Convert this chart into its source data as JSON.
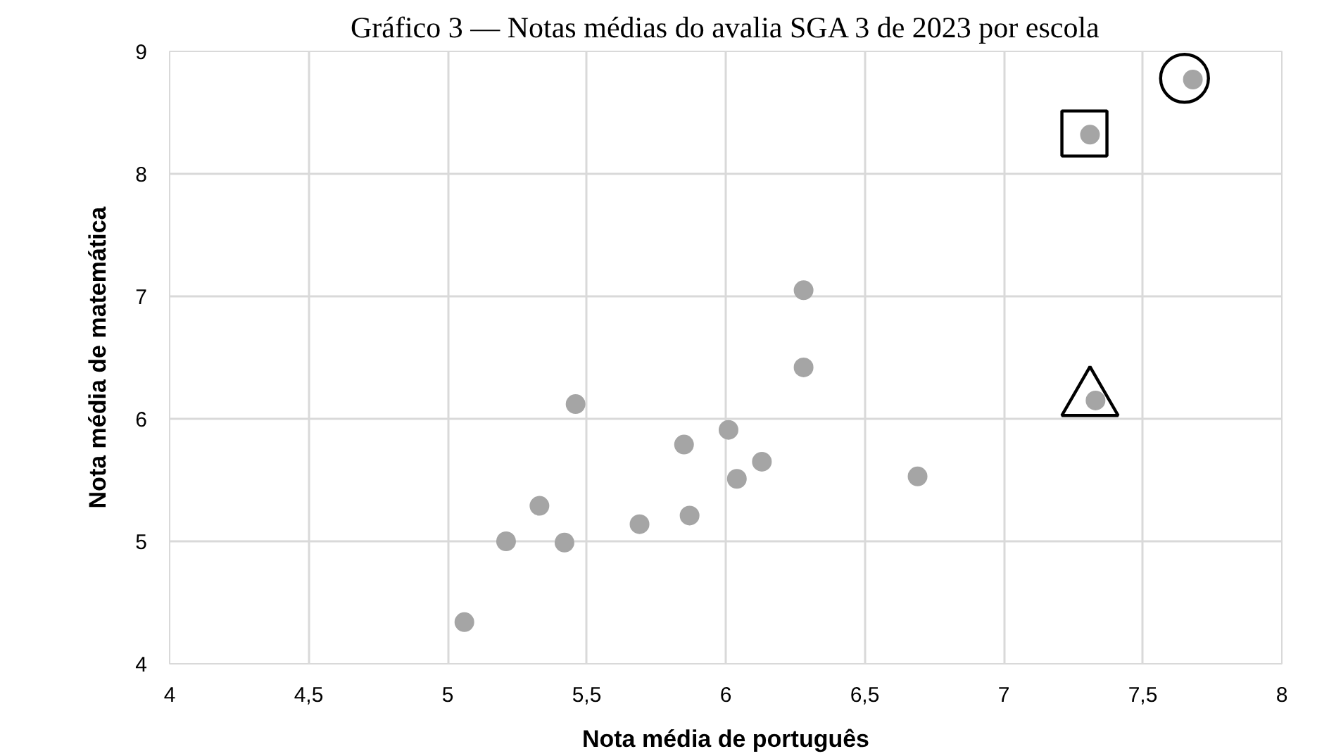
{
  "chart_data": {
    "type": "scatter",
    "title": "Gráfico 3 — Notas médias do avalia SGA 3 de 2023 por escola",
    "xlabel": "Nota média de português",
    "ylabel": "Nota média de matemática",
    "xlim": [
      4,
      8
    ],
    "ylim": [
      4,
      9
    ],
    "xticks": [
      4,
      {
        "value": 4.5,
        "label": "4,5"
      },
      5,
      {
        "value": 5.5,
        "label": "5,5"
      },
      6,
      {
        "value": 6.5,
        "label": "6,5"
      },
      7,
      {
        "value": 7.5,
        "label": "7,5"
      },
      8
    ],
    "yticks": [
      4,
      5,
      6,
      7,
      8,
      9
    ],
    "grid": true,
    "series": [
      {
        "color": "#a5a5a5",
        "marker": "circle",
        "x": [
          5.06,
          5.21,
          5.33,
          5.42,
          5.46,
          5.69,
          5.85,
          5.87,
          6.01,
          6.04,
          6.13,
          6.28,
          6.28,
          6.69,
          7.33,
          7.31,
          7.68
        ],
        "values": [
          4.34,
          5.0,
          5.29,
          4.99,
          6.12,
          5.14,
          5.79,
          5.21,
          5.91,
          5.51,
          5.65,
          7.05,
          6.42,
          5.53,
          6.15,
          8.32,
          8.77
        ]
      },
      {
        "color": "#000000",
        "marker": "circle",
        "line_style": "solid",
        "x": [
          7.65
        ],
        "values": [
          8.78
        ]
      },
      {
        "color": "#000000",
        "marker": "square",
        "line_style": "solid",
        "x": [
          7.29
        ],
        "values": [
          8.33
        ]
      },
      {
        "color": "#000000",
        "marker": "triangle",
        "line_style": "solid",
        "x": [
          7.31
        ],
        "values": [
          6.16
        ]
      }
    ]
  }
}
